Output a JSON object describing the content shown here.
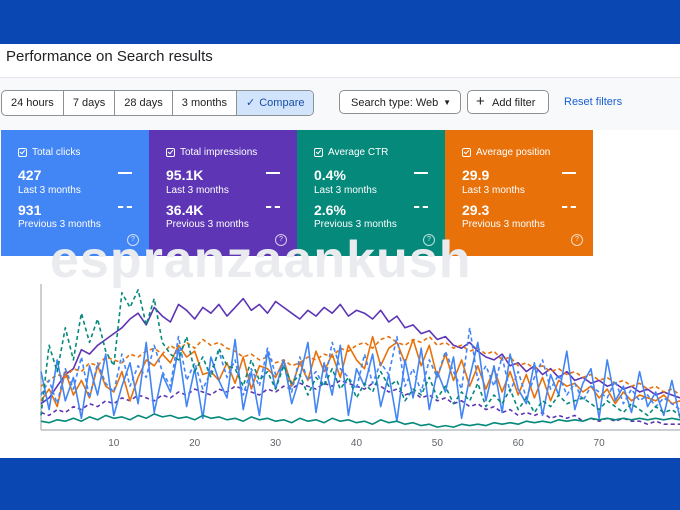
{
  "header": {
    "title": "Performance on Search results"
  },
  "toolbar": {
    "ranges": [
      {
        "label": "24 hours",
        "active": false
      },
      {
        "label": "7 days",
        "active": false
      },
      {
        "label": "28 days",
        "active": false
      },
      {
        "label": "3 months",
        "active": false
      }
    ],
    "compare_label": "Compare",
    "search_type_label": "Search type: Web",
    "add_filter_label": "Add filter",
    "reset_label": "Reset filters"
  },
  "metrics": {
    "clicks": {
      "label": "Total clicks",
      "current": "427",
      "current_label": "Last 3 months",
      "previous": "931",
      "previous_label": "Previous 3 months",
      "color": "#4285f4"
    },
    "impressions": {
      "label": "Total impressions",
      "current": "95.1K",
      "current_label": "Last 3 months",
      "previous": "36.4K",
      "previous_label": "Previous 3 months",
      "color": "#5d35b5"
    },
    "ctr": {
      "label": "Average CTR",
      "current": "0.4%",
      "current_label": "Last 3 months",
      "previous": "2.6%",
      "previous_label": "Previous 3 months",
      "color": "#04897b"
    },
    "position": {
      "label": "Average position",
      "current": "29.9",
      "current_label": "Last 3 months",
      "previous": "29.3",
      "previous_label": "Previous 3 months",
      "color": "#e8710a"
    }
  },
  "watermark": "espranzaankush",
  "chart_data": {
    "type": "line",
    "x_ticks": [
      10,
      20,
      30,
      40,
      50,
      60,
      70
    ],
    "xlim": [
      1,
      80
    ],
    "ylim": [
      0,
      100
    ],
    "grid": false,
    "legend": "none",
    "series": [
      {
        "color": "#5d35b5",
        "dashed": false,
        "values": [
          18,
          22,
          30,
          38,
          42,
          55,
          52,
          58,
          62,
          66,
          70,
          76,
          80,
          72,
          84,
          78,
          74,
          86,
          82,
          76,
          84,
          80,
          86,
          78,
          84,
          90,
          82,
          86,
          80,
          88,
          84,
          80,
          76,
          82,
          78,
          84,
          80,
          86,
          78,
          82,
          80,
          76,
          82,
          74,
          78,
          70,
          72,
          66,
          68,
          62,
          64,
          58,
          56,
          60,
          54,
          50,
          48,
          52,
          44,
          46,
          40,
          44,
          38,
          42,
          36,
          40,
          34,
          36,
          32,
          34,
          30,
          32,
          28,
          30,
          26,
          28,
          24,
          26,
          24,
          22
        ]
      },
      {
        "color": "#5d35b5",
        "dashed": true,
        "values": [
          12,
          10,
          14,
          12,
          16,
          14,
          18,
          16,
          20,
          18,
          22,
          20,
          24,
          22,
          20,
          24,
          22,
          26,
          24,
          28,
          26,
          24,
          28,
          26,
          30,
          28,
          26,
          24,
          28,
          26,
          30,
          28,
          32,
          30,
          28,
          32,
          30,
          34,
          32,
          30,
          28,
          32,
          30,
          26,
          28,
          24,
          26,
          22,
          24,
          20,
          22,
          18,
          20,
          16,
          18,
          14,
          16,
          12,
          14,
          10,
          12,
          10,
          12,
          8,
          10,
          8,
          10,
          6,
          8,
          6,
          8,
          6,
          8,
          6,
          6,
          4,
          6,
          4,
          4,
          4
        ]
      },
      {
        "color": "#e8710a",
        "dashed": false,
        "values": [
          20,
          28,
          16,
          40,
          24,
          34,
          22,
          44,
          30,
          26,
          40,
          20,
          36,
          48,
          44,
          52,
          46,
          58,
          50,
          54,
          38,
          40,
          34,
          46,
          32,
          50,
          28,
          44,
          42,
          36,
          48,
          30,
          46,
          34,
          54,
          40,
          52,
          36,
          58,
          48,
          42,
          64,
          44,
          56,
          60,
          46,
          62,
          44,
          58,
          36,
          52,
          34,
          48,
          30,
          44,
          28,
          42,
          26,
          40,
          24,
          38,
          22,
          36,
          20,
          34,
          30,
          32,
          26,
          30,
          22,
          28,
          18,
          26,
          20,
          24,
          22,
          20,
          24,
          18,
          20
        ]
      },
      {
        "color": "#e8710a",
        "dashed": true,
        "values": [
          30,
          34,
          38,
          36,
          42,
          40,
          46,
          44,
          50,
          48,
          46,
          52,
          50,
          54,
          56,
          52,
          58,
          54,
          60,
          56,
          62,
          58,
          60,
          56,
          54,
          50,
          52,
          48,
          50,
          46,
          48,
          44,
          46,
          50,
          48,
          52,
          50,
          56,
          54,
          58,
          60,
          56,
          62,
          64,
          60,
          58,
          62,
          60,
          64,
          58,
          60,
          56,
          58,
          54,
          56,
          52,
          54,
          48,
          50,
          44,
          46,
          42,
          44,
          40,
          42,
          38,
          40,
          36,
          38,
          34,
          36,
          32,
          34,
          30,
          32,
          28,
          30,
          26,
          28,
          24
        ]
      },
      {
        "color": "#4285f4",
        "dashed": false,
        "values": [
          40,
          14,
          48,
          20,
          36,
          8,
          44,
          24,
          52,
          10,
          30,
          46,
          18,
          60,
          12,
          38,
          26,
          56,
          16,
          42,
          8,
          50,
          34,
          22,
          62,
          14,
          40,
          10,
          54,
          28,
          48,
          18,
          36,
          60,
          12,
          46,
          24,
          58,
          10,
          42,
          30,
          52,
          16,
          38,
          6,
          48,
          22,
          56,
          14,
          40,
          26,
          50,
          8,
          36,
          60,
          20,
          44,
          12,
          52,
          28,
          18,
          46,
          10,
          38,
          24,
          54,
          14,
          32,
          42,
          8,
          48,
          20,
          30,
          12,
          40,
          16,
          26,
          10,
          34,
          8
        ]
      },
      {
        "color": "#4285f4",
        "dashed": true,
        "values": [
          24,
          34,
          18,
          42,
          28,
          50,
          22,
          46,
          32,
          26,
          52,
          30,
          44,
          36,
          58,
          40,
          30,
          64,
          34,
          46,
          28,
          40,
          54,
          36,
          48,
          24,
          42,
          30,
          56,
          38,
          44,
          26,
          50,
          34,
          40,
          30,
          60,
          42,
          36,
          28,
          52,
          32,
          46,
          38,
          64,
          30,
          42,
          26,
          48,
          36,
          54,
          40,
          28,
          70,
          34,
          44,
          30,
          50,
          26,
          40,
          22,
          36,
          48,
          28,
          38,
          24,
          32,
          20,
          30,
          26,
          22,
          34,
          18,
          28,
          20,
          24,
          16,
          22,
          18,
          14
        ]
      },
      {
        "color": "#04897b",
        "dashed": false,
        "values": [
          6,
          5,
          7,
          6,
          8,
          6,
          9,
          7,
          10,
          8,
          9,
          7,
          10,
          8,
          11,
          9,
          10,
          8,
          9,
          7,
          10,
          8,
          9,
          7,
          8,
          6,
          9,
          7,
          8,
          6,
          7,
          5,
          8,
          6,
          7,
          5,
          8,
          6,
          7,
          5,
          6,
          4,
          7,
          5,
          6,
          4,
          5,
          3,
          4,
          2,
          3,
          2,
          4,
          3,
          4,
          3,
          5,
          4,
          5,
          4,
          6,
          5,
          6,
          5,
          7,
          6,
          7,
          6,
          8,
          7,
          8,
          7,
          8,
          7,
          8,
          7,
          8,
          7,
          8,
          7
        ]
      },
      {
        "color": "#04897b",
        "dashed": true,
        "values": [
          10,
          58,
          40,
          70,
          48,
          80,
          60,
          76,
          54,
          44,
          94,
          84,
          96,
          72,
          90,
          60,
          52,
          48,
          64,
          40,
          50,
          36,
          56,
          44,
          42,
          30,
          48,
          34,
          40,
          28,
          44,
          32,
          38,
          24,
          36,
          30,
          42,
          28,
          36,
          22,
          32,
          26,
          40,
          30,
          34,
          20,
          28,
          24,
          36,
          22,
          30,
          18,
          26,
          20,
          32,
          16,
          24,
          18,
          28,
          14,
          22,
          12,
          20,
          16,
          24,
          18,
          20,
          22,
          18,
          14,
          20,
          16,
          12,
          18,
          14,
          10,
          16,
          12,
          14,
          10
        ]
      }
    ]
  }
}
